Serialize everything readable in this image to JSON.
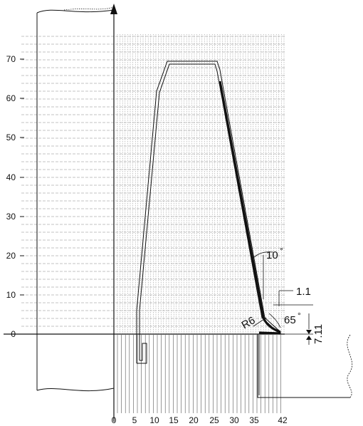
{
  "colors": {
    "ink": "#111111",
    "grid": "#888888",
    "background": "#ffffff"
  },
  "y_axis": {
    "ticks": [
      "0",
      "10",
      "20",
      "30",
      "40",
      "50",
      "60",
      "70"
    ]
  },
  "x_axis": {
    "ticks": [
      "0",
      "5",
      "10",
      "15",
      "20",
      "25",
      "30",
      "35",
      "42"
    ]
  },
  "annotations": {
    "taper_angle": "10",
    "tip_angle": "65",
    "offset": "1.1",
    "radius": "R6",
    "height": "7.11"
  },
  "degree_symbol": "°"
}
